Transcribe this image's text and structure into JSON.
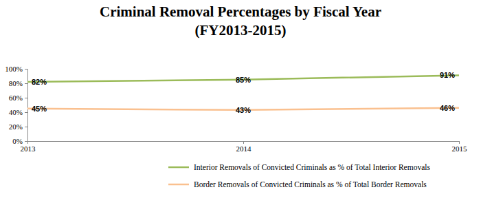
{
  "chart_data": {
    "type": "line",
    "title": [
      "Criminal Removal Percentages by Fiscal Year",
      "(FY2013-2015)"
    ],
    "x": [
      2013,
      2014,
      2015
    ],
    "xlim": [
      2013,
      2015
    ],
    "xticks": [
      2013,
      2014,
      2015
    ],
    "ylim": [
      0,
      100
    ],
    "yticks": [
      {
        "value": 0,
        "label": "0%"
      },
      {
        "value": 20,
        "label": "20%"
      },
      {
        "value": 40,
        "label": "40%"
      },
      {
        "value": 60,
        "label": "60%"
      },
      {
        "value": 80,
        "label": "80%"
      },
      {
        "value": 100,
        "label": "100%"
      }
    ],
    "grid": false,
    "legend": "bottom",
    "data_labels": true,
    "series": [
      {
        "name": "Interior Removals of Convicted Criminals as % of Total Interior Removals",
        "color": "#9bbb59",
        "values": [
          82,
          85,
          91
        ],
        "value_labels": [
          "82%",
          "85%",
          "91%"
        ]
      },
      {
        "name": "Border Removals of Convicted Criminals as % of Total Border Removals",
        "color": "#fac08f",
        "values": [
          45,
          43,
          46
        ],
        "value_labels": [
          "45%",
          "43%",
          "46%"
        ]
      }
    ]
  }
}
